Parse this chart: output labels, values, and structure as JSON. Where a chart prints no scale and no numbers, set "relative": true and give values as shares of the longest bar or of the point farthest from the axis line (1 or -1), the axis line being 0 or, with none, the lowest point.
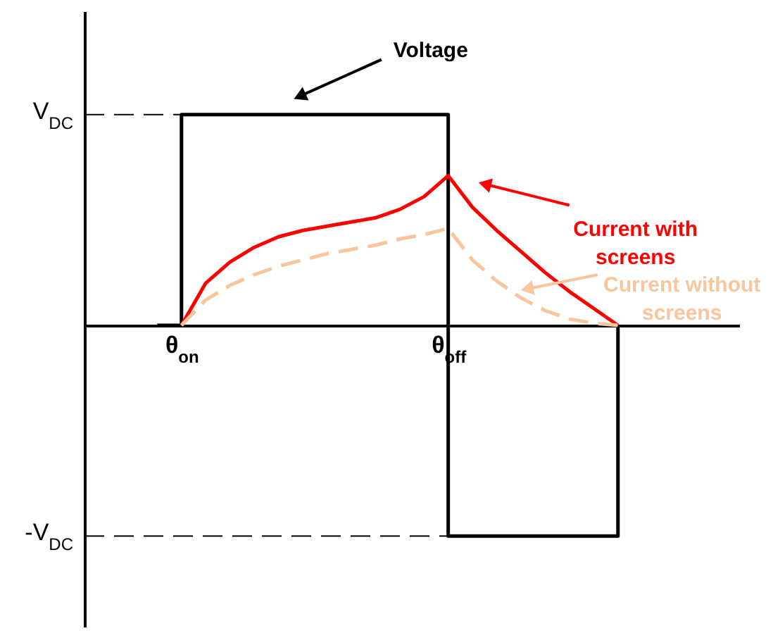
{
  "chart_data": {
    "type": "line",
    "relative": true,
    "categories": [
      null,
      null,
      null,
      null,
      "θ$_{on}$",
      null,
      null,
      null,
      null,
      null,
      null,
      null,
      null,
      null,
      null,
      "θ$_{off}$",
      null,
      null,
      null,
      null,
      null,
      null,
      null,
      null,
      null,
      null,
      null,
      null
    ],
    "series": [
      {
        "name": "Voltage",
        "type": "step",
        "color": "#000000",
        "line_style": "solid",
        "values": [
          null,
          null,
          null,
          0,
          1,
          1,
          1,
          1,
          1,
          1,
          1,
          1,
          1,
          1,
          1,
          -1,
          -1,
          -1,
          -1,
          -1,
          -1,
          -1,
          0,
          null,
          null,
          null,
          null,
          null
        ]
      },
      {
        "name": "Current with screens",
        "color": "#ff0000",
        "line_style": "solid",
        "values": [
          null,
          null,
          null,
          null,
          0,
          0.2,
          0.3,
          0.37,
          0.42,
          0.45,
          0.47,
          0.49,
          0.51,
          0.55,
          0.61,
          0.71,
          0.56,
          0.45,
          0.35,
          0.25,
          0.16,
          0.08,
          0,
          null,
          null,
          null,
          null,
          null
        ]
      },
      {
        "name": "Current without screens",
        "color": "#f8c59c",
        "line_style": "dashed",
        "values": [
          null,
          null,
          null,
          null,
          0,
          0.12,
          0.19,
          0.24,
          0.28,
          0.31,
          0.34,
          0.36,
          0.38,
          0.41,
          0.43,
          0.46,
          0.31,
          0.21,
          0.13,
          0.07,
          0.03,
          0.01,
          0,
          null,
          null,
          null,
          null,
          null
        ]
      }
    ],
    "ref_lines": [
      {
        "axis": "y",
        "value": 1,
        "label": "V$_{DC}$",
        "color": "#000000",
        "line_style": "dashed"
      },
      {
        "axis": "y",
        "value": -1,
        "label": "-V$_{DC}$",
        "color": "#000000",
        "line_style": "dashed"
      }
    ],
    "marker": "none"
  }
}
